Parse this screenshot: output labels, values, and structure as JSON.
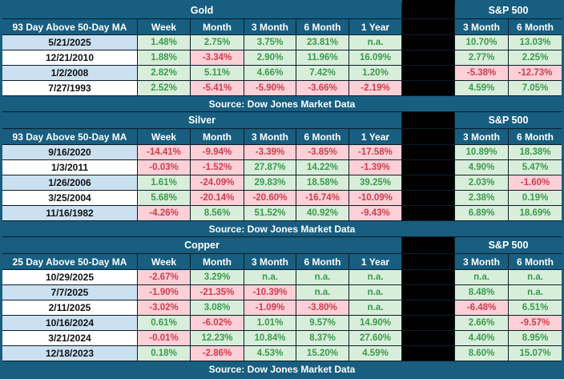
{
  "colors": {
    "header_blue": "#175e80",
    "header_text": "#ffffff",
    "grid_line": "#0b1d28",
    "gap_black": "#000000",
    "row_blue": "#cbe1f2",
    "row_white": "#ffffff",
    "positive_bg": "#d8eeda",
    "positive_text": "#3a9a4d",
    "negative_bg": "#fcd0d6",
    "negative_text": "#cd3c4e",
    "date_text": "#111111"
  },
  "chart_data": {
    "type": "table",
    "source": "Source: Dow Jones Market Data",
    "na_label": "n.a.",
    "tables": [
      {
        "title": "Gold",
        "sp_title": "S&P 500",
        "row_header": "93 Day Above 50-Day MA",
        "columns": [
          "Week",
          "Month",
          "3 Month",
          "6 Month",
          "1 Year"
        ],
        "sp_columns": [
          "3 Month",
          "6 Month"
        ],
        "rows": [
          {
            "date": "5/21/2025",
            "values": [
              "1.48%",
              "2.75%",
              "3.75%",
              "23.81%",
              "n.a."
            ],
            "sp": [
              "10.70%",
              "13.03%"
            ]
          },
          {
            "date": "12/21/2010",
            "values": [
              "1.88%",
              "-3.34%",
              "2.90%",
              "11.96%",
              "16.09%"
            ],
            "sp": [
              "2.77%",
              "2.25%"
            ]
          },
          {
            "date": "1/2/2008",
            "values": [
              "2.82%",
              "5.11%",
              "4.66%",
              "7.42%",
              "1.20%"
            ],
            "sp": [
              "-5.38%",
              "-12.73%"
            ]
          },
          {
            "date": "7/27/1993",
            "values": [
              "2.52%",
              "-5.41%",
              "-5.90%",
              "-3.66%",
              "-2.19%"
            ],
            "sp": [
              "4.59%",
              "7.05%"
            ]
          }
        ]
      },
      {
        "title": "Silver",
        "sp_title": "S&P 500",
        "row_header": "93 Day Above 50-Day MA",
        "columns": [
          "Week",
          "Month",
          "3 Month",
          "6 Month",
          "1 Year"
        ],
        "sp_columns": [
          "3 Month",
          "6 Month"
        ],
        "rows": [
          {
            "date": "9/16/2020",
            "values": [
              "-14.41%",
              "-9.94%",
              "-3.39%",
              "-3.85%",
              "-17.58%"
            ],
            "sp": [
              "10.89%",
              "18.38%"
            ]
          },
          {
            "date": "1/3/2011",
            "values": [
              "-0.03%",
              "-1.52%",
              "27.87%",
              "14.22%",
              "-1.39%"
            ],
            "sp": [
              "4.90%",
              "5.47%"
            ]
          },
          {
            "date": "1/26/2006",
            "values": [
              "1.61%",
              "-24.09%",
              "29.83%",
              "18.58%",
              "39.25%"
            ],
            "sp": [
              "2.03%",
              "-1.60%"
            ]
          },
          {
            "date": "3/25/2004",
            "values": [
              "5.68%",
              "-20.14%",
              "-20.60%",
              "-16.74%",
              "-10.09%"
            ],
            "sp": [
              "2.38%",
              "0.19%"
            ]
          },
          {
            "date": "11/16/1982",
            "values": [
              "-4.26%",
              "8.56%",
              "51.52%",
              "40.92%",
              "-9.43%"
            ],
            "sp": [
              "6.89%",
              "18.69%"
            ]
          }
        ]
      },
      {
        "title": "Copper",
        "sp_title": "S&P 500",
        "row_header": "25 Day Above 50-Day MA",
        "columns": [
          "Week",
          "Month",
          "3 Month",
          "6 Month",
          "1 Year"
        ],
        "sp_columns": [
          "3 Month",
          "6 Month"
        ],
        "rows": [
          {
            "date": "10/29/2025",
            "values": [
              "-2.67%",
              "3.29%",
              "n.a.",
              "n.a.",
              "n.a."
            ],
            "sp": [
              "n.a.",
              "n.a."
            ]
          },
          {
            "date": "7/7/2025",
            "values": [
              "-1.90%",
              "-21.35%",
              "-10.39%",
              "n.a.",
              "n.a."
            ],
            "sp": [
              "8.48%",
              "n.a."
            ]
          },
          {
            "date": "2/11/2025",
            "values": [
              "-3.02%",
              "3.08%",
              "-1.09%",
              "-3.80%",
              "n.a."
            ],
            "sp": [
              "-6.48%",
              "6.51%"
            ]
          },
          {
            "date": "10/16/2024",
            "values": [
              "0.61%",
              "-6.02%",
              "1.01%",
              "9.57%",
              "14.90%"
            ],
            "sp": [
              "2.66%",
              "-9.57%"
            ]
          },
          {
            "date": "3/21/2024",
            "values": [
              "-0.01%",
              "12.23%",
              "10.84%",
              "8.37%",
              "27.60%"
            ],
            "sp": [
              "4.40%",
              "8.95%"
            ]
          },
          {
            "date": "12/18/2023",
            "values": [
              "0.18%",
              "-2.86%",
              "4.53%",
              "15.20%",
              "4.59%"
            ],
            "sp": [
              "8.60%",
              "15.07%"
            ]
          }
        ]
      }
    ]
  }
}
